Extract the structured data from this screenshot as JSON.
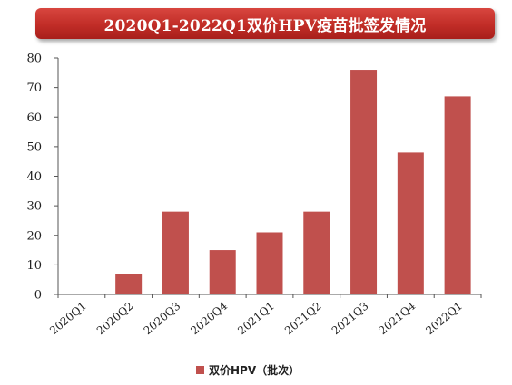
{
  "header": {
    "title": "2020Q1-2022Q1双价HPV疫苗批签发情况"
  },
  "chart_data": {
    "type": "bar",
    "title": "2020Q1-2022Q1双价HPV疫苗批签发情况",
    "categories": [
      "2020Q1",
      "2020Q2",
      "2020Q3",
      "2020Q4",
      "2021Q1",
      "2021Q2",
      "2021Q3",
      "2021Q4",
      "2022Q1"
    ],
    "series": [
      {
        "name": "双价HPV（批次）",
        "values": [
          0,
          7,
          28,
          15,
          21,
          28,
          76,
          48,
          67
        ],
        "color": "#c0504d"
      }
    ],
    "ylim": [
      0,
      80
    ],
    "yticks": [
      0,
      10,
      20,
      30,
      40,
      50,
      60,
      70,
      80
    ],
    "grid": false,
    "legend_position": "bottom"
  }
}
